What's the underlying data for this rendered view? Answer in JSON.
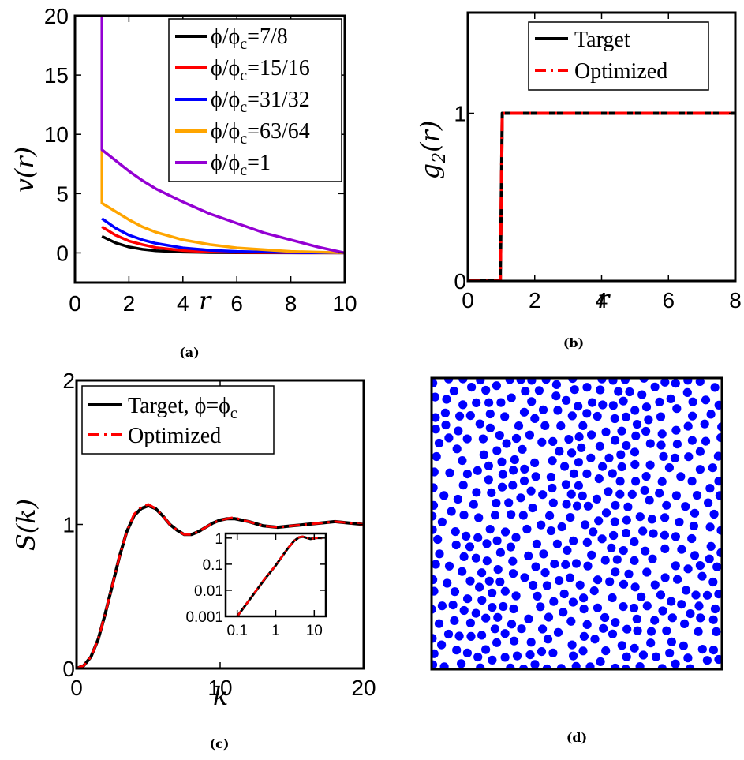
{
  "colors": {
    "black": "#000000",
    "red": "#ff0000",
    "blue": "#0000ff",
    "orange": "#ffa500",
    "purple": "#9400d3",
    "points": "#0000ff"
  },
  "chart_data": [
    {
      "panel": "a",
      "caption": "(a)",
      "type": "line",
      "xlabel": "r",
      "ylabel": "v(r)",
      "xlim": [
        0,
        10
      ],
      "ylim": [
        -2.5,
        20
      ],
      "xticks": [
        "0",
        "2",
        "4",
        "6",
        "8",
        "10"
      ],
      "yticks": [
        "0",
        "5",
        "10",
        "15",
        "20"
      ],
      "legend_position": "top-right",
      "series": [
        {
          "name": "ϕ/ϕc=7/8",
          "legend_main": "ϕ/ϕ",
          "legend_sub": "c",
          "legend_tail": "=7/8",
          "color": "#000000",
          "x": [
            1.0,
            1.5,
            2.0,
            2.5,
            3.0,
            4.0,
            5.0,
            6.0,
            8.0,
            10.0
          ],
          "y": [
            1.4,
            0.85,
            0.5,
            0.3,
            0.18,
            0.07,
            0.03,
            0.01,
            0.0,
            0.0
          ]
        },
        {
          "name": "ϕ/ϕc=15/16",
          "legend_main": "ϕ/ϕ",
          "legend_sub": "c",
          "legend_tail": "=15/16",
          "color": "#ff0000",
          "x": [
            1.0,
            1.5,
            2.0,
            2.5,
            3.0,
            4.0,
            5.0,
            6.0,
            8.0,
            10.0
          ],
          "y": [
            2.2,
            1.5,
            1.0,
            0.7,
            0.45,
            0.2,
            0.09,
            0.04,
            0.01,
            0.0
          ]
        },
        {
          "name": "ϕ/ϕc=31/32",
          "legend_main": "ϕ/ϕ",
          "legend_sub": "c",
          "legend_tail": "=31/32",
          "color": "#0000ff",
          "x": [
            1.0,
            1.5,
            2.0,
            2.5,
            3.0,
            4.0,
            5.0,
            6.0,
            8.0,
            10.0
          ],
          "y": [
            2.9,
            2.1,
            1.5,
            1.1,
            0.8,
            0.42,
            0.22,
            0.12,
            0.03,
            0.0
          ]
        },
        {
          "name": "ϕ/ϕc=63/64",
          "legend_main": "ϕ/ϕ",
          "legend_sub": "c",
          "legend_tail": "=63/64",
          "color": "#ffa500",
          "x": [
            1.0,
            1.0,
            1.5,
            2.0,
            2.5,
            3.0,
            4.0,
            5.0,
            6.0,
            8.0,
            10.0
          ],
          "y": [
            8.7,
            4.2,
            3.5,
            2.8,
            2.2,
            1.75,
            1.1,
            0.7,
            0.42,
            0.12,
            0.0
          ]
        },
        {
          "name": "ϕ/ϕc=1",
          "legend_main": "ϕ/ϕ",
          "legend_sub": "c",
          "legend_tail": "=1",
          "color": "#9400d3",
          "x": [
            1.0,
            1.0,
            1.5,
            2.0,
            2.5,
            3.0,
            4.0,
            5.0,
            6.0,
            7.0,
            8.0,
            9.0,
            10.0
          ],
          "y": [
            20.0,
            8.7,
            7.8,
            6.9,
            6.1,
            5.4,
            4.3,
            3.3,
            2.5,
            1.7,
            1.1,
            0.5,
            0.0
          ]
        }
      ]
    },
    {
      "panel": "b",
      "caption": "(b)",
      "type": "line",
      "xlabel": "r",
      "ylabel_main": "g",
      "ylabel_sub": "2",
      "ylabel_tail": "(r)",
      "xlim": [
        0,
        8
      ],
      "ylim": [
        0,
        1.6
      ],
      "xticks": [
        "0",
        "2",
        "4",
        "6",
        "8"
      ],
      "yticks": [
        "0",
        "1"
      ],
      "legend_position": "top-right",
      "series": [
        {
          "name": "Target",
          "color": "#000000",
          "style": "solid",
          "x": [
            0,
            0.97,
            1.03,
            8
          ],
          "y": [
            0,
            0,
            1,
            1
          ]
        },
        {
          "name": "Optimized",
          "color": "#ff0000",
          "style": "dashdot",
          "x": [
            0,
            0.97,
            1.03,
            8
          ],
          "y": [
            0,
            0,
            1,
            1
          ]
        }
      ]
    },
    {
      "panel": "c",
      "caption": "(c)",
      "type": "line",
      "xlabel": "k",
      "ylabel": "S(k)",
      "xlim": [
        0,
        20
      ],
      "ylim": [
        0,
        2
      ],
      "xticks": [
        "0",
        "10",
        "20"
      ],
      "yticks": [
        "0",
        "1",
        "2"
      ],
      "legend_position": "top-left",
      "series": [
        {
          "name": "Target, ϕ=ϕc",
          "legend_main": "Target, ϕ=ϕ",
          "legend_sub": "c",
          "color": "#000000",
          "style": "solid",
          "x": [
            0,
            0.5,
            1,
            1.5,
            2,
            2.5,
            3,
            3.5,
            4,
            4.5,
            5,
            5.5,
            6,
            6.5,
            7,
            7.5,
            8,
            8.5,
            9,
            9.5,
            10,
            10.5,
            11,
            11.5,
            12,
            13,
            14,
            15,
            16,
            17,
            18,
            19,
            20
          ],
          "y": [
            0,
            0.02,
            0.08,
            0.2,
            0.38,
            0.58,
            0.78,
            0.95,
            1.06,
            1.11,
            1.13,
            1.11,
            1.06,
            1.0,
            0.96,
            0.93,
            0.93,
            0.95,
            0.98,
            1.01,
            1.03,
            1.04,
            1.04,
            1.03,
            1.02,
            0.99,
            0.98,
            0.99,
            1.0,
            1.01,
            1.02,
            1.01,
            1.0
          ]
        },
        {
          "name": "Optimized",
          "color": "#ff0000",
          "style": "dashdot",
          "x": [
            0,
            0.5,
            1,
            1.5,
            2,
            2.5,
            3,
            3.5,
            4,
            4.5,
            5,
            5.5,
            6,
            6.5,
            7,
            7.5,
            8,
            8.5,
            9,
            9.5,
            10,
            10.5,
            11,
            11.5,
            12,
            13,
            14,
            15,
            16,
            17,
            18,
            19,
            20
          ],
          "y": [
            0,
            0.02,
            0.08,
            0.2,
            0.38,
            0.58,
            0.78,
            0.95,
            1.07,
            1.12,
            1.14,
            1.11,
            1.06,
            1.0,
            0.96,
            0.93,
            0.93,
            0.95,
            0.98,
            1.01,
            1.03,
            1.04,
            1.05,
            1.03,
            1.02,
            0.99,
            0.98,
            0.99,
            1.0,
            1.01,
            1.02,
            1.01,
            1.0
          ]
        }
      ],
      "inset": {
        "type": "line",
        "xscale": "log",
        "yscale": "log",
        "xlim": [
          0.05,
          20
        ],
        "ylim": [
          0.001,
          1.5
        ],
        "xticks": [
          "0.1",
          "1",
          "10"
        ],
        "yticks": [
          "0.001",
          "0.01",
          "0.1",
          "1"
        ],
        "series": [
          {
            "name": "Target",
            "color": "#000000",
            "x": [
              0.1,
              0.2,
              0.5,
              1,
              2,
              3,
              4,
              5,
              8,
              12,
              16
            ],
            "y": [
              0.001,
              0.004,
              0.025,
              0.09,
              0.38,
              0.78,
              1.06,
              1.13,
              0.93,
              1.02,
              1.0
            ]
          },
          {
            "name": "Optimized",
            "color": "#ff0000",
            "x": [
              0.1,
              0.2,
              0.5,
              1,
              2,
              3,
              4,
              5,
              8,
              12,
              16
            ],
            "y": [
              0.001,
              0.004,
              0.026,
              0.09,
              0.38,
              0.78,
              1.07,
              1.14,
              0.93,
              1.02,
              1.0
            ]
          }
        ]
      }
    },
    {
      "panel": "d",
      "caption": "(d)",
      "type": "scatter",
      "description_color": "#0000ff",
      "point_count": 600,
      "xlim": [
        0,
        1
      ],
      "ylim": [
        0,
        1
      ]
    }
  ]
}
